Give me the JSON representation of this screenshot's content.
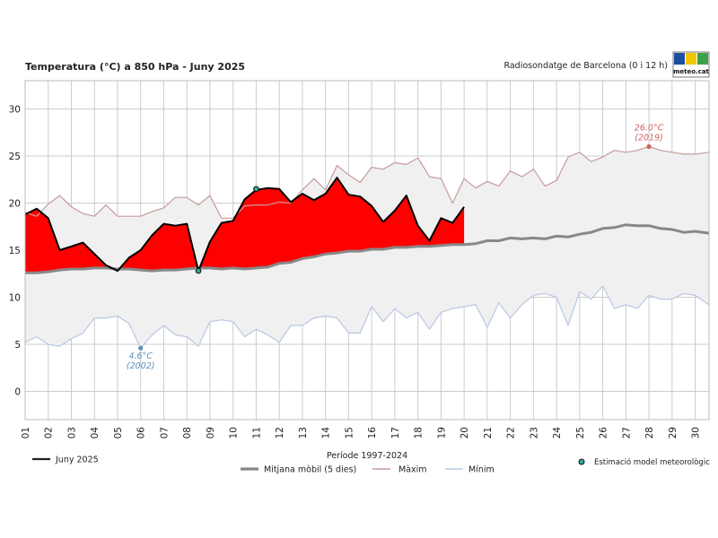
{
  "chart_data": {
    "type": "line",
    "title": "Temperatura (°C) a 850 hPa - Juny 2025",
    "station": "Radiosondatge de Barcelona (0 i 12 h)",
    "logo_text": "meteo.cat",
    "xlabel": "",
    "ylabel": "",
    "xlim": [
      0,
      29.6
    ],
    "ylim": [
      -3,
      33
    ],
    "yticks": [
      0,
      5,
      10,
      15,
      20,
      25,
      30
    ],
    "categories": [
      "01",
      "02",
      "03",
      "04",
      "05",
      "06",
      "07",
      "08",
      "09",
      "10",
      "11",
      "12",
      "13",
      "14",
      "15",
      "16",
      "17",
      "18",
      "19",
      "20",
      "21",
      "22",
      "23",
      "24",
      "25",
      "26",
      "27",
      "28",
      "29",
      "30"
    ],
    "series": [
      {
        "name": "Juny 2025",
        "color": "#000000",
        "x": [
          0,
          0.5,
          1,
          1.5,
          2,
          2.5,
          3,
          3.5,
          4,
          4.5,
          5,
          5.5,
          6,
          6.5,
          7,
          7.5,
          8,
          8.5,
          9,
          9.5,
          10,
          10.5,
          11,
          11.5,
          12,
          12.5,
          13,
          13.5,
          14,
          14.5,
          15,
          15.5,
          16,
          16.5,
          17,
          17.5,
          18,
          18.5,
          19
        ],
        "values": [
          18.8,
          19.4,
          18.4,
          15.0,
          15.4,
          15.8,
          14.6,
          13.4,
          12.8,
          14.2,
          15.0,
          16.6,
          17.8,
          17.6,
          17.8,
          12.8,
          15.9,
          17.9,
          18.1,
          20.4,
          21.4,
          21.6,
          21.5,
          20.1,
          21.0,
          20.3,
          21.0,
          22.7,
          20.9,
          20.7,
          19.7,
          18.0,
          19.2,
          20.8,
          17.6,
          16.0,
          18.4,
          17.9,
          19.6
        ]
      },
      {
        "name": "Mitjana mòbil (5 dies)",
        "color": "#888888",
        "x": [
          0,
          0.5,
          1,
          1.5,
          2,
          2.5,
          3,
          3.5,
          4,
          4.5,
          5,
          5.5,
          6,
          6.5,
          7,
          7.5,
          8,
          8.5,
          9,
          9.5,
          10,
          10.5,
          11,
          11.5,
          12,
          12.5,
          13,
          13.5,
          14,
          14.5,
          15,
          15.5,
          16,
          16.5,
          17,
          17.5,
          18,
          18.5,
          19,
          19.5,
          20,
          20.5,
          21,
          21.5,
          22,
          22.5,
          23,
          23.5,
          24,
          24.5,
          25,
          25.5,
          26,
          26.5,
          27,
          27.5,
          28,
          28.5,
          29,
          29.6
        ],
        "values": [
          12.6,
          12.6,
          12.7,
          12.9,
          13.0,
          13.0,
          13.1,
          13.1,
          13.0,
          13.0,
          12.9,
          12.8,
          12.9,
          12.9,
          13.0,
          13.1,
          13.1,
          13.0,
          13.1,
          13.0,
          13.1,
          13.2,
          13.6,
          13.7,
          14.1,
          14.3,
          14.6,
          14.7,
          14.9,
          14.9,
          15.1,
          15.1,
          15.3,
          15.3,
          15.4,
          15.4,
          15.5,
          15.6,
          15.6,
          15.7,
          16.0,
          16.0,
          16.3,
          16.2,
          16.3,
          16.2,
          16.5,
          16.4,
          16.7,
          16.9,
          17.3,
          17.4,
          17.7,
          17.6,
          17.6,
          17.3,
          17.2,
          16.9,
          17.0,
          16.8
        ]
      },
      {
        "name": "Màxim",
        "color": "#c89a9a",
        "x": [
          0,
          0.5,
          1,
          1.5,
          2,
          2.5,
          3,
          3.5,
          4,
          4.5,
          5,
          5.5,
          6,
          6.5,
          7,
          7.5,
          8,
          8.5,
          9,
          9.5,
          10,
          10.5,
          11,
          11.5,
          12,
          12.5,
          13,
          13.5,
          14,
          14.5,
          15,
          15.5,
          16,
          16.5,
          17,
          17.5,
          18,
          18.5,
          19,
          19.5,
          20,
          20.5,
          21,
          21.5,
          22,
          22.5,
          23,
          23.5,
          24,
          24.5,
          25,
          25.5,
          26,
          26.5,
          27,
          27.5,
          28,
          28.5,
          29,
          29.6
        ],
        "values": [
          19.0,
          18.6,
          19.9,
          20.8,
          19.6,
          18.9,
          18.6,
          19.8,
          18.6,
          18.6,
          18.6,
          19.1,
          19.5,
          20.6,
          20.6,
          19.8,
          20.8,
          18.4,
          18.4,
          19.7,
          19.8,
          19.8,
          20.1,
          20.0,
          21.4,
          22.6,
          21.4,
          24.0,
          23.0,
          22.2,
          23.8,
          23.6,
          24.3,
          24.1,
          24.8,
          22.8,
          22.6,
          20.0,
          22.6,
          21.6,
          22.3,
          21.8,
          23.4,
          22.8,
          23.6,
          21.8,
          22.4,
          24.9,
          25.4,
          24.4,
          24.9,
          25.6,
          25.4,
          25.6,
          26.0,
          25.6,
          25.4,
          25.2,
          25.2,
          25.4
        ]
      },
      {
        "name": "Mínim",
        "color": "#b8c8e4",
        "x": [
          0,
          0.5,
          1,
          1.5,
          2,
          2.5,
          3,
          3.5,
          4,
          4.5,
          5,
          5.5,
          6,
          6.5,
          7,
          7.5,
          8,
          8.5,
          9,
          9.5,
          10,
          10.5,
          11,
          11.5,
          12,
          12.5,
          13,
          13.5,
          14,
          14.5,
          15,
          15.5,
          16,
          16.5,
          17,
          17.5,
          18,
          18.5,
          19,
          19.5,
          20,
          20.5,
          21,
          21.5,
          22,
          22.5,
          23,
          23.5,
          24,
          24.5,
          25,
          25.5,
          26,
          26.5,
          27,
          27.5,
          28,
          28.5,
          29,
          29.6
        ],
        "values": [
          5.2,
          5.8,
          5.0,
          4.8,
          5.6,
          6.2,
          7.8,
          7.8,
          8.0,
          7.2,
          4.6,
          6.0,
          7.0,
          6.0,
          5.8,
          4.8,
          7.4,
          7.6,
          7.4,
          5.8,
          6.6,
          6.0,
          5.2,
          7.0,
          7.0,
          7.8,
          8.0,
          7.8,
          6.2,
          6.2,
          9.0,
          7.4,
          8.8,
          7.8,
          8.4,
          6.6,
          8.4,
          8.8,
          9.0,
          9.2,
          6.8,
          9.4,
          7.8,
          9.2,
          10.2,
          10.4,
          10.0,
          7.0,
          10.6,
          9.8,
          11.2,
          8.8,
          9.2,
          8.8,
          10.2,
          9.8,
          9.8,
          10.4,
          10.2,
          9.2
        ]
      }
    ],
    "model_estimates": {
      "label": "Estimació model meteorològic",
      "color": "#2aaa9a",
      "points": [
        {
          "x": 7.5,
          "value": 12.8
        },
        {
          "x": 10,
          "value": 21.5
        }
      ]
    },
    "annotations": [
      {
        "value_label": "26.0°C",
        "year_label": "(2019)",
        "x": 27,
        "value": 26.0,
        "color": "#d06060"
      },
      {
        "value_label": "4.6°C",
        "year_label": "(2002)",
        "x": 5,
        "value": 4.6,
        "color": "#5a8fc0"
      }
    ],
    "legend": {
      "juny": "Juny 2025",
      "period_title": "Període 1997-2024",
      "mean": "Mitjana mòbil (5 dies)",
      "max": "Màxim",
      "min": "Mínim",
      "model": "Estimació model meteorològic"
    },
    "colors": {
      "above_fill": "#ff0000",
      "band_fill": "#f0f0f0",
      "grid": "#cccccc",
      "logo_blue": "#1b4f9c",
      "logo_yellow": "#f2c500",
      "logo_green": "#3aa34a"
    }
  }
}
